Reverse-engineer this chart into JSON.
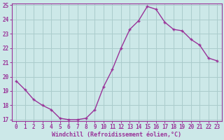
{
  "x": [
    0,
    1,
    2,
    3,
    4,
    5,
    6,
    7,
    8,
    9,
    10,
    11,
    12,
    13,
    14,
    15,
    16,
    17,
    18,
    19,
    20,
    21,
    22,
    23
  ],
  "y": [
    19.7,
    19.1,
    18.4,
    18.0,
    17.7,
    17.1,
    17.0,
    17.0,
    17.1,
    17.7,
    19.3,
    20.5,
    22.0,
    23.3,
    23.9,
    24.9,
    24.7,
    23.8,
    23.3,
    23.2,
    22.6,
    22.2,
    21.3,
    21.1
  ],
  "line_color": "#993399",
  "marker": "+",
  "bg_color": "#cce8e8",
  "grid_color": "#aacccc",
  "xlabel": "Windchill (Refroidissement éolien,°C)",
  "ylabel": "",
  "ylim": [
    17,
    25
  ],
  "xlim": [
    -0.5,
    23.5
  ],
  "yticks": [
    17,
    18,
    19,
    20,
    21,
    22,
    23,
    24,
    25
  ],
  "xticks": [
    0,
    1,
    2,
    3,
    4,
    5,
    6,
    7,
    8,
    9,
    10,
    11,
    12,
    13,
    14,
    15,
    16,
    17,
    18,
    19,
    20,
    21,
    22,
    23
  ],
  "tick_color": "#993399",
  "label_color": "#993399",
  "font": "monospace",
  "tick_fontsize": 5.5,
  "xlabel_fontsize": 6.0,
  "linewidth": 1.0,
  "markersize": 3.5,
  "markeredgewidth": 1.0
}
